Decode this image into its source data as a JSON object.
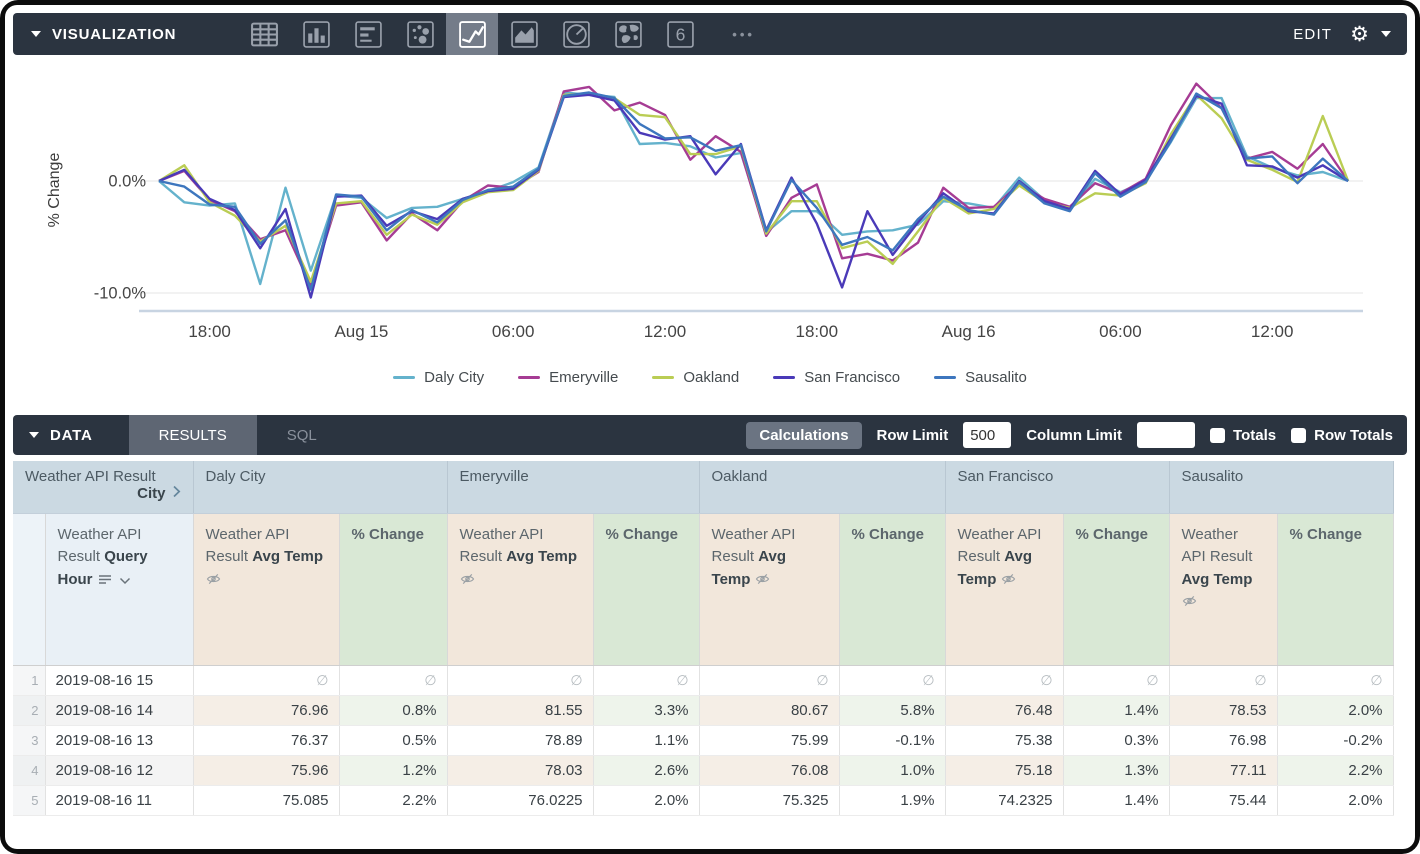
{
  "viz_bar": {
    "title": "VISUALIZATION",
    "chart_types": [
      "table",
      "column",
      "bar",
      "scatter",
      "line",
      "area",
      "pie",
      "map",
      "single-value"
    ],
    "selected_chart_type": "line",
    "single_value_glyph": "6",
    "more_label": "•••",
    "edit_label": "EDIT",
    "settings_icon": "gear"
  },
  "chart_data": {
    "type": "line",
    "title": "",
    "xlabel": "",
    "ylabel": "% Change",
    "ylim": [
      -12,
      10.5
    ],
    "grid": "horizontal",
    "legend_position": "bottom",
    "yticks": [
      {
        "value": 0,
        "label": "0.0%"
      },
      {
        "value": -10,
        "label": "-10.0%"
      }
    ],
    "x": [
      "2019-08-14 16",
      "2019-08-14 17",
      "2019-08-14 18",
      "2019-08-14 19",
      "2019-08-14 20",
      "2019-08-14 21",
      "2019-08-14 22",
      "2019-08-14 23",
      "2019-08-15 00",
      "2019-08-15 01",
      "2019-08-15 02",
      "2019-08-15 03",
      "2019-08-15 04",
      "2019-08-15 05",
      "2019-08-15 06",
      "2019-08-15 07",
      "2019-08-15 08",
      "2019-08-15 09",
      "2019-08-15 10",
      "2019-08-15 11",
      "2019-08-15 12",
      "2019-08-15 13",
      "2019-08-15 14",
      "2019-08-15 15",
      "2019-08-15 16",
      "2019-08-15 17",
      "2019-08-15 18",
      "2019-08-15 19",
      "2019-08-15 20",
      "2019-08-15 21",
      "2019-08-15 22",
      "2019-08-15 23",
      "2019-08-16 00",
      "2019-08-16 01",
      "2019-08-16 02",
      "2019-08-16 03",
      "2019-08-16 04",
      "2019-08-16 05",
      "2019-08-16 06",
      "2019-08-16 07",
      "2019-08-16 08",
      "2019-08-16 09",
      "2019-08-16 10",
      "2019-08-16 11",
      "2019-08-16 12",
      "2019-08-16 13",
      "2019-08-16 14",
      "2019-08-16 15"
    ],
    "xticks": [
      {
        "i": 2,
        "label": "18:00"
      },
      {
        "i": 8,
        "label": "Aug 15"
      },
      {
        "i": 14,
        "label": "06:00"
      },
      {
        "i": 20,
        "label": "12:00"
      },
      {
        "i": 26,
        "label": "18:00"
      },
      {
        "i": 32,
        "label": "Aug 16"
      },
      {
        "i": 38,
        "label": "06:00"
      },
      {
        "i": 44,
        "label": "12:00"
      }
    ],
    "series": [
      {
        "name": "Daly City",
        "color": "#64B2CC",
        "values": [
          0.0,
          -1.9,
          -2.2,
          -2.0,
          -9.2,
          -0.6,
          -8.0,
          -1.3,
          -1.5,
          -3.3,
          -2.4,
          -2.3,
          -1.6,
          -0.9,
          -0.1,
          1.2,
          7.9,
          7.7,
          7.5,
          3.3,
          3.4,
          3.1,
          2.1,
          2.5,
          -4.6,
          -2.7,
          -2.7,
          -4.8,
          -4.5,
          -4.4,
          -3.9,
          -1.8,
          -2.0,
          -2.4,
          0.3,
          -1.7,
          -2.6,
          0.2,
          -1.0,
          0.0,
          3.5,
          7.4,
          7.4,
          2.2,
          1.2,
          0.5,
          0.8,
          0.0
        ]
      },
      {
        "name": "Emeryville",
        "color": "#A63C94",
        "values": [
          0.0,
          0.9,
          -1.7,
          -2.7,
          -5.2,
          -4.4,
          -9.4,
          -2.2,
          -1.9,
          -5.3,
          -2.9,
          -4.4,
          -1.8,
          -0.4,
          -0.6,
          0.8,
          8.0,
          8.4,
          6.3,
          7.0,
          5.9,
          1.9,
          4.0,
          2.6,
          -4.9,
          -1.5,
          -0.3,
          -6.9,
          -6.5,
          -7.1,
          -5.5,
          -0.6,
          -2.4,
          -2.3,
          -0.3,
          -1.6,
          -2.3,
          -0.2,
          -1.1,
          0.2,
          5.0,
          8.7,
          6.5,
          2.0,
          2.6,
          1.1,
          3.3,
          0.0
        ]
      },
      {
        "name": "Oakland",
        "color": "#BACD54",
        "values": [
          0.0,
          1.4,
          -1.9,
          -3.1,
          -5.4,
          -4.0,
          -9.0,
          -2.0,
          -1.8,
          -4.8,
          -3.0,
          -3.9,
          -1.9,
          -1.0,
          -0.8,
          0.9,
          7.7,
          7.8,
          7.4,
          5.9,
          5.7,
          2.4,
          2.4,
          3.1,
          -4.7,
          -1.8,
          -1.8,
          -6.0,
          -5.4,
          -7.4,
          -4.5,
          -1.5,
          -2.9,
          -2.5,
          -0.4,
          -1.9,
          -2.4,
          -1.1,
          -1.3,
          -0.2,
          4.2,
          7.7,
          5.6,
          1.9,
          1.0,
          -0.1,
          5.8,
          0.0
        ]
      },
      {
        "name": "San Francisco",
        "color": "#4A3AB8",
        "values": [
          0.0,
          1.0,
          -1.6,
          -2.6,
          -6.0,
          -2.5,
          -10.4,
          -1.4,
          -1.3,
          -4.0,
          -2.7,
          -3.4,
          -1.6,
          -0.9,
          -0.7,
          1.0,
          7.5,
          7.7,
          7.2,
          4.3,
          3.7,
          4.0,
          0.6,
          3.3,
          -4.4,
          0.3,
          -3.8,
          -9.5,
          -2.7,
          -6.6,
          -3.7,
          -1.1,
          -2.7,
          -2.9,
          0.0,
          -1.8,
          -2.5,
          0.9,
          -1.2,
          0.1,
          3.8,
          7.6,
          6.9,
          1.4,
          1.3,
          0.3,
          1.4,
          0.0
        ]
      },
      {
        "name": "Sausalito",
        "color": "#3D76BE",
        "values": [
          0.0,
          -0.5,
          -2.1,
          -2.3,
          -5.6,
          -3.5,
          -9.7,
          -1.2,
          -1.4,
          -4.4,
          -2.6,
          -3.7,
          -1.7,
          -0.8,
          -0.5,
          1.1,
          7.6,
          7.9,
          7.4,
          5.1,
          3.8,
          3.9,
          2.7,
          3.2,
          -4.5,
          0.1,
          -2.4,
          -5.7,
          -5.0,
          -6.2,
          -3.4,
          -1.4,
          -2.6,
          -3.0,
          -0.1,
          -2.0,
          -2.7,
          0.7,
          -1.4,
          -0.1,
          3.6,
          7.8,
          6.5,
          2.0,
          2.2,
          -0.2,
          2.0,
          0.0
        ]
      }
    ]
  },
  "data_bar": {
    "title": "DATA",
    "tabs": [
      {
        "label": "RESULTS",
        "active": true
      },
      {
        "label": "SQL",
        "active": false
      }
    ],
    "calculations_label": "Calculations",
    "row_limit_label": "Row Limit",
    "row_limit_value": "500",
    "column_limit_label": "Column Limit",
    "column_limit_value": "",
    "totals_label": "Totals",
    "row_totals_label": "Row Totals"
  },
  "table": {
    "group_header": {
      "dimension_title": "Weather API Result",
      "dimension_field": "City",
      "cities": [
        "Daly City",
        "Emeryville",
        "Oakland",
        "San Francisco",
        "Sausalito"
      ]
    },
    "column_headers": {
      "hour_prefix": "Weather API Result",
      "hour_field": "Query Hour",
      "measure_prefix": "Weather API Result",
      "measure_field": "Avg Temp",
      "pct_field": "% Change"
    },
    "null_symbol": "∅",
    "rows": [
      {
        "num": "1",
        "hour": "2019-08-16 15",
        "cells": [
          "∅",
          "∅",
          "∅",
          "∅",
          "∅",
          "∅",
          "∅",
          "∅",
          "∅",
          "∅"
        ]
      },
      {
        "num": "2",
        "hour": "2019-08-16 14",
        "cells": [
          "76.96",
          "0.8%",
          "81.55",
          "3.3%",
          "80.67",
          "5.8%",
          "76.48",
          "1.4%",
          "78.53",
          "2.0%"
        ]
      },
      {
        "num": "3",
        "hour": "2019-08-16 13",
        "cells": [
          "76.37",
          "0.5%",
          "78.89",
          "1.1%",
          "75.99",
          "-0.1%",
          "75.38",
          "0.3%",
          "76.98",
          "-0.2%"
        ]
      },
      {
        "num": "4",
        "hour": "2019-08-16 12",
        "cells": [
          "75.96",
          "1.2%",
          "78.03",
          "2.6%",
          "76.08",
          "1.0%",
          "75.18",
          "1.3%",
          "77.11",
          "2.2%"
        ]
      },
      {
        "num": "5",
        "hour": "2019-08-16 11",
        "cells": [
          "75.085",
          "2.2%",
          "76.0225",
          "2.0%",
          "75.325",
          "1.9%",
          "74.2325",
          "1.4%",
          "75.44",
          "2.0%"
        ]
      }
    ]
  }
}
